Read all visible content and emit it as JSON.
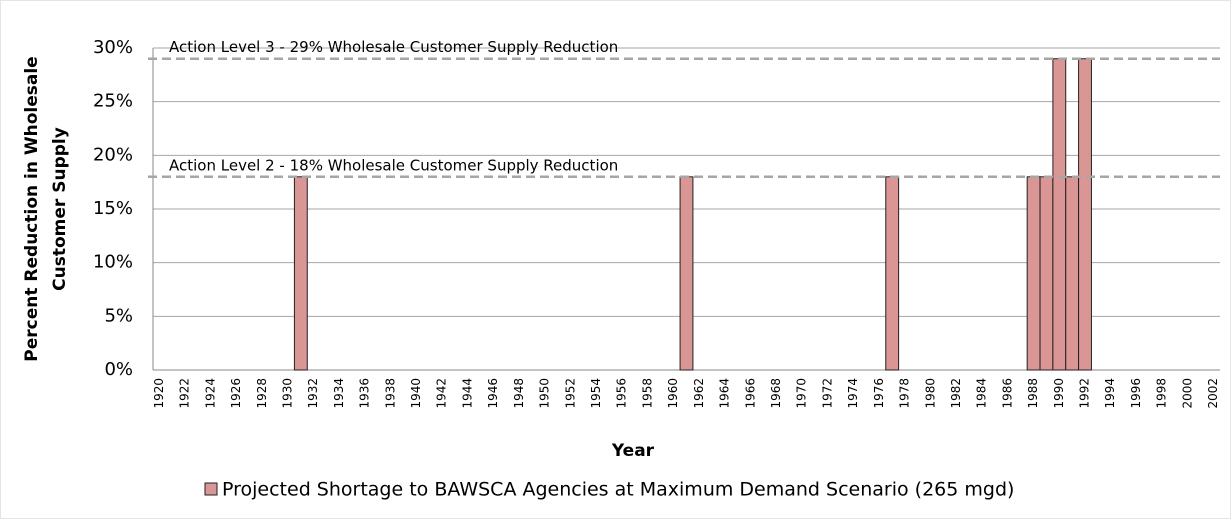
{
  "chart_data": {
    "type": "bar",
    "y_label": [
      "Percent Reduction in Wholesale",
      "Customer Supply"
    ],
    "x_label": "Year",
    "categories": [
      "1920",
      null,
      "1922",
      null,
      "1924",
      null,
      "1926",
      null,
      "1928",
      null,
      "1930",
      null,
      "1932",
      null,
      "1934",
      null,
      "1936",
      null,
      "1938",
      null,
      "1940",
      null,
      "1942",
      null,
      "1944",
      null,
      "1946",
      null,
      "1948",
      null,
      "1950",
      null,
      "1952",
      null,
      "1954",
      null,
      "1956",
      null,
      "1958",
      null,
      "1960",
      null,
      "1962",
      null,
      "1964",
      null,
      "1966",
      null,
      "1968",
      null,
      "1970",
      null,
      "1972",
      null,
      "1974",
      null,
      "1976",
      null,
      "1978",
      null,
      "1980",
      null,
      "1982",
      null,
      "1984",
      null,
      "1986",
      null,
      "1988",
      null,
      "1990",
      null,
      "1992",
      null,
      "1994",
      null,
      "1996",
      null,
      "1998",
      null,
      "2000",
      null,
      "2002"
    ],
    "series": [
      {
        "name": "Projected Shortage to BAWSCA Agencies at Maximum Demand Scenario (265 mgd)",
        "color": "#d99694",
        "values": [
          0,
          0,
          0,
          0,
          0,
          0,
          0,
          0,
          0,
          0,
          0,
          18,
          0,
          0,
          0,
          0,
          0,
          0,
          0,
          0,
          0,
          0,
          0,
          0,
          0,
          0,
          0,
          0,
          0,
          0,
          0,
          0,
          0,
          0,
          0,
          0,
          0,
          0,
          0,
          0,
          0,
          18,
          0,
          0,
          0,
          0,
          0,
          0,
          0,
          0,
          0,
          0,
          0,
          0,
          0,
          0,
          0,
          18,
          0,
          0,
          0,
          0,
          0,
          0,
          0,
          0,
          0,
          0,
          18,
          18,
          29,
          18,
          29,
          0,
          0,
          0,
          0,
          0,
          0,
          0,
          0,
          0,
          0
        ]
      }
    ],
    "annotations": [
      {
        "text": "Action Level 3 - 29% Wholesale Customer Supply Reduction",
        "value": 29
      },
      {
        "text": "Action Level 2 - 18% Wholesale Customer Supply Reduction",
        "value": 18
      }
    ],
    "ylim": [
      0,
      30
    ],
    "yticks": [
      {
        "value": 0,
        "label": "0%"
      },
      {
        "value": 5,
        "label": "5%"
      },
      {
        "value": 10,
        "label": "10%"
      },
      {
        "value": 15,
        "label": "15%"
      },
      {
        "value": 20,
        "label": "20%"
      },
      {
        "value": 25,
        "label": "25%"
      },
      {
        "value": 30,
        "label": "30%"
      }
    ],
    "grid": true
  }
}
